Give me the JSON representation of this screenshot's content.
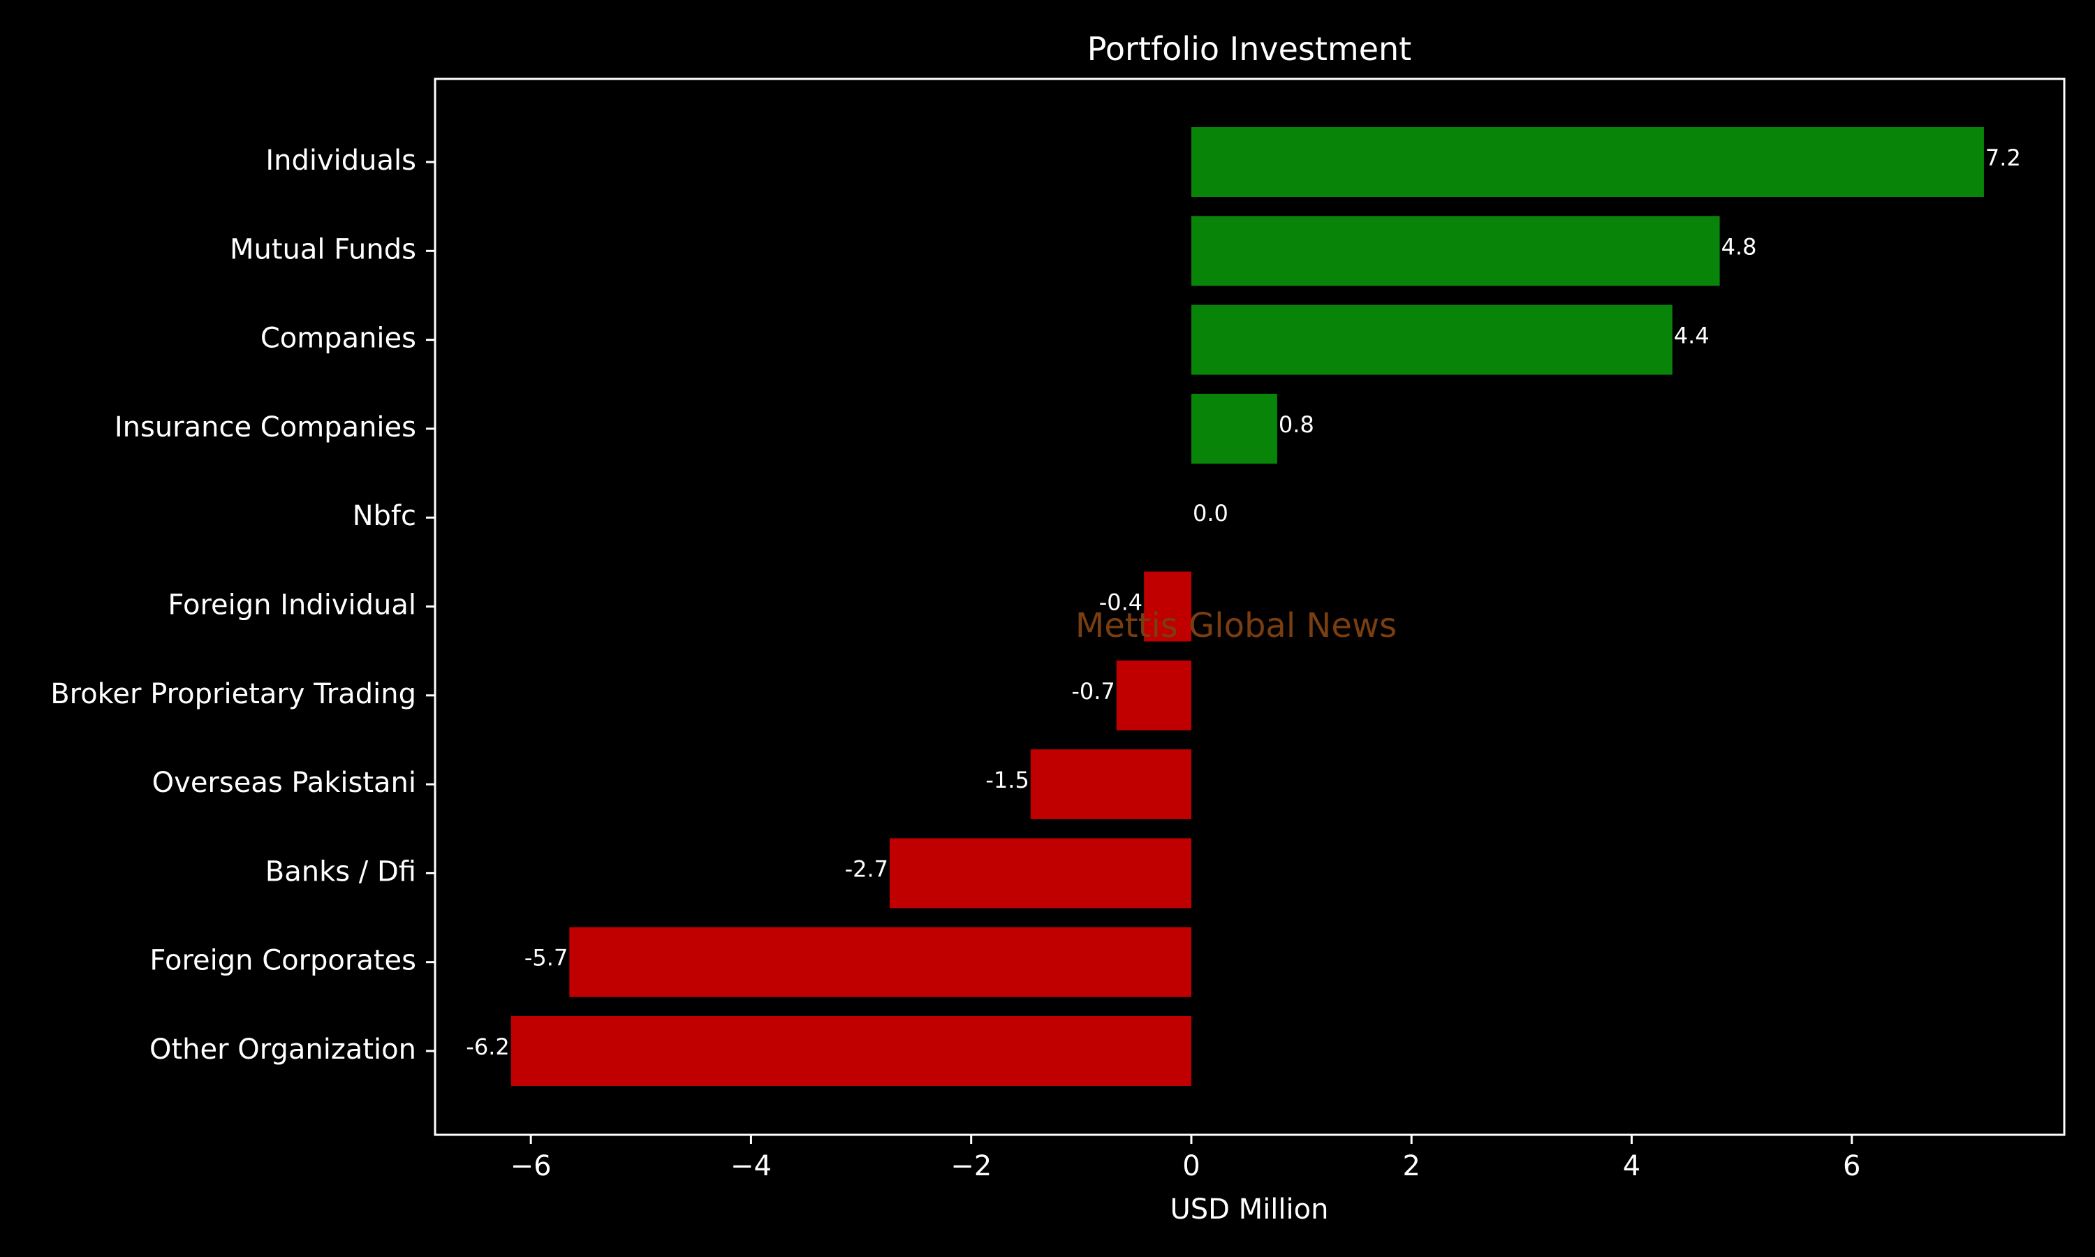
{
  "chart_data": {
    "type": "bar",
    "orientation": "horizontal",
    "title": "Portfolio Investment",
    "xlabel": "USD Million",
    "ylabel": "",
    "xlim": [
      -6.87,
      7.93
    ],
    "xticks": [
      -6,
      -4,
      -2,
      0,
      2,
      4,
      6
    ],
    "xtick_labels": [
      "−6",
      "−4",
      "−2",
      "0",
      "2",
      "4",
      "6"
    ],
    "categories": [
      "Individuals",
      "Mutual Funds",
      "Companies",
      "Insurance Companies",
      "Nbfc",
      "Foreign Individual",
      "Broker Proprietary Trading",
      "Overseas Pakistani",
      "Banks / Dfi",
      "Foreign Corporates ",
      "Other Organization"
    ],
    "values": [
      7.2,
      4.8,
      4.4,
      0.8,
      0.0,
      -0.4,
      -0.7,
      -1.5,
      -2.7,
      -5.7,
      -6.2
    ],
    "data_labels": [
      "7.2",
      "4.8",
      "4.4",
      "0.8",
      "0.0",
      "-0.4",
      "-0.7",
      "-1.5",
      "-2.7",
      "-5.7",
      "-6.2"
    ],
    "plot_values": [
      7.2,
      4.8,
      4.37,
      0.78,
      0.0,
      -0.43,
      -0.68,
      -1.46,
      -2.74,
      -5.65,
      -6.18
    ],
    "colors": {
      "positive": "#088408",
      "negative": "#c00000",
      "background": "#000000",
      "text": "#ffffff",
      "watermark": "#7a3e10"
    },
    "watermark": "Mettis Global News",
    "grid": false,
    "legend": "none"
  }
}
